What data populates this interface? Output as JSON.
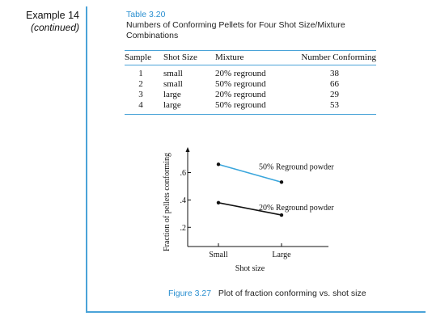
{
  "example": {
    "title": "Example 14",
    "subtitle": "(continued)"
  },
  "table": {
    "number": "Table 3.20",
    "title": "Numbers of Conforming Pellets for Four Shot Size/Mixture Combinations",
    "columns": [
      "Sample",
      "Shot Size",
      "Mixture",
      "Number Conforming"
    ],
    "rows": [
      [
        "1",
        "small",
        "20% reground",
        "38"
      ],
      [
        "2",
        "small",
        "50% reground",
        "66"
      ],
      [
        "3",
        "large",
        "20% reground",
        "29"
      ],
      [
        "4",
        "large",
        "50% reground",
        "53"
      ]
    ]
  },
  "chart_data": {
    "type": "line",
    "categories": [
      "Small",
      "Large"
    ],
    "xlabel": "Shot size",
    "ylabel": "Fraction of pellets conforming",
    "yticks": [
      ".2",
      ".4",
      ".6"
    ],
    "ylim": [
      0.06,
      0.78
    ],
    "series": [
      {
        "name": "50% Reground powder",
        "values": [
          0.66,
          0.53
        ],
        "color": "#3aa6dc"
      },
      {
        "name": "20% Reground powder",
        "values": [
          0.38,
          0.29
        ],
        "color": "#111111"
      }
    ],
    "grid": false,
    "legend": "inline labels"
  },
  "figure": {
    "number": "Figure 3.27",
    "caption": "Plot of fraction conforming vs. shot size"
  }
}
